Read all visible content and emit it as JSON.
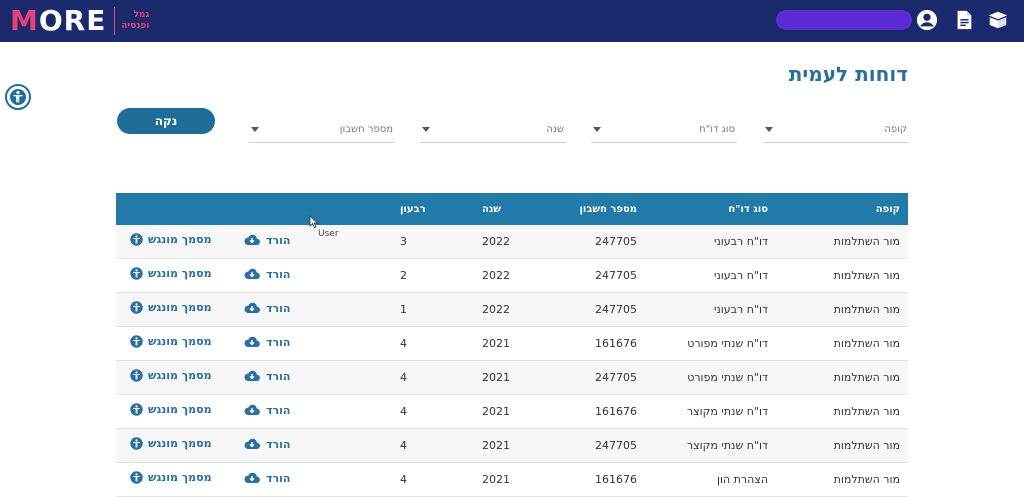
{
  "header": {
    "logo_prefix": "M",
    "logo_rest": "ORE",
    "logo_sub_line1": "גמל",
    "logo_sub_line2": "ופנסיה",
    "icons": [
      "profile-icon",
      "document-icon",
      "box-icon"
    ],
    "bg_color": "#1a2a6c",
    "accent_color": "#e8407a"
  },
  "page": {
    "title": "דוחות לעמית"
  },
  "filters": {
    "kupa_label": "קופה",
    "report_type_label": "סוג דו\"ח",
    "year_label": "שנה",
    "account_label": "מספר חשבון",
    "clear_label": "נקה"
  },
  "table": {
    "headers": {
      "kupa": "קופה",
      "type": "סוג דו\"ח",
      "account": "מספר חשבון",
      "year": "שנה",
      "quarter": "רבעון"
    },
    "download_label": "הורד",
    "accessible_label": "מסמך מונגש",
    "rows": [
      {
        "kupa": "מור השתלמות",
        "type": "דו\"ח רבעוני",
        "account": "247705",
        "year": "2022",
        "quarter": "3"
      },
      {
        "kupa": "מור השתלמות",
        "type": "דו\"ח רבעוני",
        "account": "247705",
        "year": "2022",
        "quarter": "2"
      },
      {
        "kupa": "מור השתלמות",
        "type": "דו\"ח רבעוני",
        "account": "247705",
        "year": "2022",
        "quarter": "1"
      },
      {
        "kupa": "מור השתלמות",
        "type": "דו\"ח שנתי מפורט",
        "account": "161676",
        "year": "2021",
        "quarter": "4"
      },
      {
        "kupa": "מור השתלמות",
        "type": "דו\"ח שנתי מפורט",
        "account": "247705",
        "year": "2021",
        "quarter": "4"
      },
      {
        "kupa": "מור השתלמות",
        "type": "דו\"ח שנתי מקוצר",
        "account": "161676",
        "year": "2021",
        "quarter": "4"
      },
      {
        "kupa": "מור השתלמות",
        "type": "דו\"ח שנתי מקוצר",
        "account": "247705",
        "year": "2021",
        "quarter": "4"
      },
      {
        "kupa": "מור השתלמות",
        "type": "הצהרת הון",
        "account": "161676",
        "year": "2021",
        "quarter": "4"
      }
    ]
  },
  "tooltip": "User"
}
